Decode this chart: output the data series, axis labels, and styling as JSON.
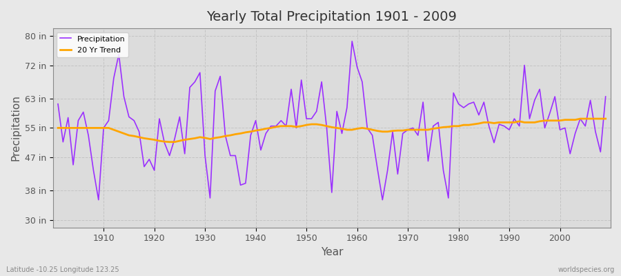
{
  "title": "Yearly Total Precipitation 1901 - 2009",
  "xlabel": "Year",
  "ylabel": "Precipitation",
  "subtitle": "Latitude -10.25 Longitude 123.25",
  "watermark": "worldspecies.org",
  "years": [
    1901,
    1902,
    1903,
    1904,
    1905,
    1906,
    1907,
    1908,
    1909,
    1910,
    1911,
    1912,
    1913,
    1914,
    1915,
    1916,
    1917,
    1918,
    1919,
    1920,
    1921,
    1922,
    1923,
    1924,
    1925,
    1926,
    1927,
    1928,
    1929,
    1930,
    1931,
    1932,
    1933,
    1934,
    1935,
    1936,
    1937,
    1938,
    1939,
    1940,
    1941,
    1942,
    1943,
    1944,
    1945,
    1946,
    1947,
    1948,
    1949,
    1950,
    1951,
    1952,
    1953,
    1954,
    1955,
    1956,
    1957,
    1958,
    1959,
    1960,
    1961,
    1962,
    1963,
    1964,
    1965,
    1966,
    1967,
    1968,
    1969,
    1970,
    1971,
    1972,
    1973,
    1974,
    1975,
    1976,
    1977,
    1978,
    1979,
    1980,
    1981,
    1982,
    1983,
    1984,
    1985,
    1986,
    1987,
    1988,
    1989,
    1990,
    1991,
    1992,
    1993,
    1994,
    1995,
    1996,
    1997,
    1998,
    1999,
    2000,
    2001,
    2002,
    2003,
    2004,
    2005,
    2006,
    2007,
    2008,
    2009
  ],
  "precip_in": [
    61.5,
    51.2,
    57.8,
    45.0,
    57.0,
    59.3,
    53.0,
    43.5,
    35.5,
    55.0,
    57.0,
    68.5,
    75.0,
    63.5,
    58.0,
    57.0,
    54.0,
    44.5,
    46.5,
    43.5,
    57.5,
    51.0,
    47.5,
    52.0,
    58.0,
    48.0,
    66.0,
    67.5,
    70.0,
    47.5,
    36.0,
    65.0,
    69.0,
    53.0,
    47.5,
    47.5,
    39.5,
    40.0,
    53.0,
    57.0,
    49.0,
    53.5,
    55.5,
    55.5,
    57.0,
    55.5,
    65.5,
    55.0,
    68.0,
    57.5,
    57.5,
    59.5,
    67.5,
    55.0,
    37.5,
    59.5,
    53.5,
    60.5,
    78.5,
    71.5,
    67.5,
    55.0,
    53.0,
    44.0,
    35.5,
    43.5,
    54.0,
    42.5,
    53.5,
    54.5,
    55.0,
    53.0,
    62.0,
    46.0,
    55.5,
    56.5,
    43.5,
    36.0,
    64.5,
    61.5,
    60.5,
    61.5,
    62.0,
    58.5,
    62.0,
    55.5,
    51.0,
    56.0,
    55.5,
    54.5,
    57.5,
    55.5,
    72.0,
    57.5,
    62.5,
    65.5,
    55.0,
    59.0,
    63.5,
    54.5,
    55.0,
    48.0,
    53.5,
    57.5,
    55.5,
    62.5,
    54.0,
    48.5,
    63.5
  ],
  "trend_years": [
    1901,
    1902,
    1903,
    1904,
    1905,
    1906,
    1907,
    1908,
    1909,
    1910,
    1911,
    1912,
    1913,
    1914,
    1915,
    1916,
    1917,
    1918,
    1919,
    1920,
    1921,
    1922,
    1923,
    1924,
    1925,
    1926,
    1927,
    1928,
    1929,
    1930,
    1931,
    1932,
    1933,
    1934,
    1935,
    1936,
    1937,
    1938,
    1939,
    1940,
    1941,
    1942,
    1943,
    1944,
    1945,
    1946,
    1947,
    1948,
    1949,
    1950,
    1951,
    1952,
    1953,
    1954,
    1955,
    1956,
    1957,
    1958,
    1959,
    1960,
    1961,
    1962,
    1963,
    1964,
    1965,
    1966,
    1967,
    1968,
    1969,
    1970,
    1971,
    1972,
    1973,
    1974,
    1975,
    1976,
    1977,
    1978,
    1979,
    1980,
    1981,
    1982,
    1983,
    1984,
    1985,
    1986,
    1987,
    1988,
    1989,
    1990,
    1991,
    1992,
    1993,
    1994,
    1995,
    1996,
    1997,
    1998,
    1999,
    2000,
    2001,
    2002,
    2003,
    2004,
    2005,
    2006,
    2007,
    2008,
    2009
  ],
  "trend_in": [
    55.0,
    55.0,
    55.0,
    55.0,
    55.0,
    55.0,
    55.0,
    55.0,
    55.0,
    55.0,
    55.0,
    54.5,
    54.0,
    53.5,
    53.0,
    52.8,
    52.5,
    52.2,
    52.0,
    51.8,
    51.5,
    51.3,
    51.2,
    51.2,
    51.5,
    51.8,
    52.0,
    52.2,
    52.5,
    52.3,
    52.0,
    52.3,
    52.5,
    52.8,
    53.0,
    53.3,
    53.5,
    53.8,
    54.0,
    54.3,
    54.5,
    54.8,
    55.0,
    55.3,
    55.5,
    55.5,
    55.5,
    55.3,
    55.5,
    55.8,
    56.0,
    56.0,
    55.8,
    55.5,
    55.2,
    55.0,
    54.8,
    54.5,
    54.5,
    54.8,
    55.0,
    54.8,
    54.5,
    54.2,
    54.0,
    54.0,
    54.2,
    54.3,
    54.3,
    54.5,
    54.5,
    54.5,
    54.5,
    54.5,
    54.8,
    55.0,
    55.2,
    55.3,
    55.5,
    55.5,
    55.8,
    55.8,
    56.0,
    56.2,
    56.5,
    56.5,
    56.3,
    56.5,
    56.5,
    56.5,
    56.5,
    56.8,
    56.5,
    56.5,
    56.5,
    56.8,
    57.0,
    57.0,
    57.0,
    57.0,
    57.2,
    57.2,
    57.2,
    57.5,
    57.5,
    57.5,
    57.5,
    57.5,
    57.5
  ],
  "precip_color": "#9B30FF",
  "trend_color": "#FFA500",
  "bg_color": "#E8E8E8",
  "plot_bg_color": "#DCDCDC",
  "grid_color": "#BEBEBE",
  "yticks": [
    30,
    38,
    47,
    55,
    63,
    72,
    80
  ],
  "ytick_labels": [
    "30 in",
    "38 in",
    "47 in",
    "55 in",
    "63 in",
    "72 in",
    "80 in"
  ],
  "xticks": [
    1910,
    1920,
    1930,
    1940,
    1950,
    1960,
    1970,
    1980,
    1990,
    2000
  ],
  "ylim": [
    28,
    82
  ],
  "xlim": [
    1900,
    2010
  ]
}
